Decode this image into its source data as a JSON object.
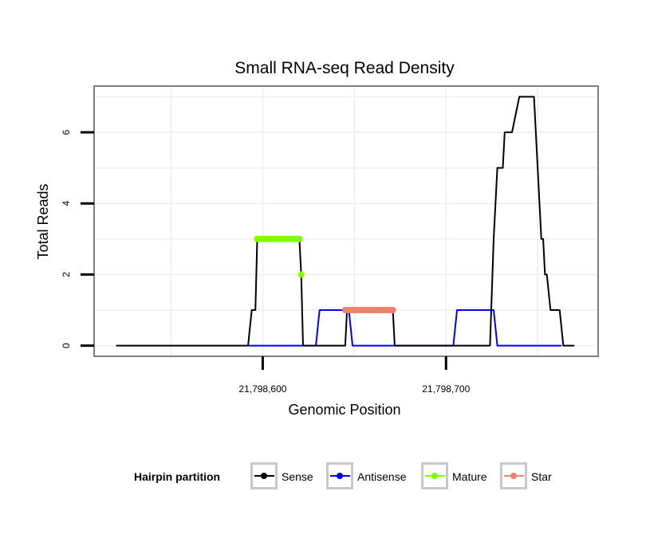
{
  "chart_data": {
    "type": "line",
    "title": "Small RNA-seq Read Density",
    "xlabel": "Genomic Position",
    "ylabel": "Total Reads",
    "xlim": [
      21798508,
      21798783
    ],
    "ylim": [
      -0.3,
      7.3
    ],
    "x_ticks": [
      21798600,
      21798700
    ],
    "x_tick_labels": [
      "21,798,600",
      "21,798,700"
    ],
    "y_ticks": [
      0,
      2,
      4,
      6
    ],
    "y_tick_labels": [
      "0",
      "2",
      "4",
      "6"
    ],
    "grid": true,
    "legend": {
      "title": "Hairpin partition",
      "position": "bottom",
      "entries": [
        {
          "name": "Sense",
          "color": "#000000"
        },
        {
          "name": "Antisense",
          "color": "#0000ff"
        },
        {
          "name": "Mature",
          "color": "#7fff00"
        },
        {
          "name": "Star",
          "color": "#f08070"
        }
      ]
    },
    "series": [
      {
        "name": "Sense",
        "color": "#000000",
        "style": "line",
        "x": [
          21798520,
          21798592,
          21798594,
          21798596,
          21798597,
          21798620,
          21798621,
          21798622,
          21798645,
          21798646,
          21798647,
          21798648,
          21798671,
          21798672,
          21798724,
          21798726,
          21798728,
          21798729,
          21798731,
          21798732,
          21798735,
          21798736,
          21798740,
          21798748,
          21798749,
          21798750,
          21798751,
          21798752,
          21798753,
          21798754,
          21798755,
          21798757,
          21798758,
          21798762,
          21798764,
          21798770
        ],
        "y": [
          0,
          0,
          1,
          1,
          3,
          3,
          2,
          0,
          0,
          1,
          1,
          1,
          1,
          0,
          0,
          3,
          5,
          5,
          5,
          6,
          6,
          6,
          7,
          7,
          6,
          5,
          4,
          3,
          3,
          2,
          2,
          1,
          1,
          1,
          0,
          0
        ]
      },
      {
        "name": "Antisense",
        "color": "#0000ff",
        "style": "line",
        "x": [
          21798592,
          21798629,
          21798631,
          21798645,
          21798647,
          21798649,
          21798672,
          21798674,
          21798704,
          21798706,
          21798726,
          21798728,
          21798763
        ],
        "y": [
          0,
          0,
          1,
          1,
          1,
          0,
          0,
          0,
          0,
          1,
          1,
          0,
          0
        ]
      },
      {
        "name": "Mature",
        "color": "#7fff00",
        "style": "points",
        "x": [
          21798597,
          21798598,
          21798599,
          21798600,
          21798601,
          21798602,
          21798603,
          21798604,
          21798605,
          21798606,
          21798607,
          21798608,
          21798609,
          21798610,
          21798611,
          21798612,
          21798613,
          21798614,
          21798615,
          21798616,
          21798617,
          21798618,
          21798619,
          21798620,
          21798621
        ],
        "y": [
          3,
          3,
          3,
          3,
          3,
          3,
          3,
          3,
          3,
          3,
          3,
          3,
          3,
          3,
          3,
          3,
          3,
          3,
          3,
          3,
          3,
          3,
          3,
          3,
          2
        ]
      },
      {
        "name": "Star",
        "color": "#f08070",
        "style": "points",
        "x": [
          21798645,
          21798646,
          21798647,
          21798648,
          21798649,
          21798650,
          21798651,
          21798652,
          21798653,
          21798654,
          21798655,
          21798656,
          21798657,
          21798658,
          21798659,
          21798660,
          21798661,
          21798662,
          21798663,
          21798664,
          21798665,
          21798666,
          21798667,
          21798668,
          21798669,
          21798670,
          21798671
        ],
        "y": [
          1,
          1,
          1,
          1,
          1,
          1,
          1,
          1,
          1,
          1,
          1,
          1,
          1,
          1,
          1,
          1,
          1,
          1,
          1,
          1,
          1,
          1,
          1,
          1,
          1,
          1,
          1
        ]
      }
    ]
  }
}
